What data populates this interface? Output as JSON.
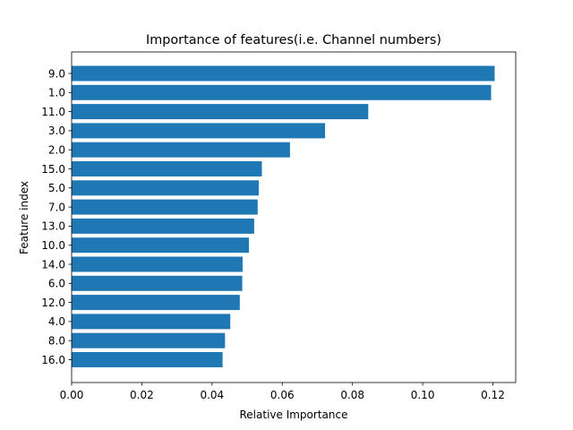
{
  "chart_data": {
    "type": "bar",
    "orientation": "horizontal",
    "title": "Importance of features(i.e. Channel numbers)",
    "xlabel": "Relative Importance",
    "ylabel": "Feature index",
    "categories": [
      "9.0",
      "1.0",
      "11.0",
      "3.0",
      "2.0",
      "15.0",
      "5.0",
      "7.0",
      "13.0",
      "10.0",
      "14.0",
      "6.0",
      "12.0",
      "4.0",
      "8.0",
      "16.0"
    ],
    "values": [
      0.1205,
      0.1195,
      0.0845,
      0.0722,
      0.0622,
      0.0542,
      0.0533,
      0.053,
      0.052,
      0.0505,
      0.0487,
      0.0486,
      0.0479,
      0.0452,
      0.0437,
      0.043
    ],
    "xlim": [
      0,
      0.1265
    ],
    "xticks": [
      0.0,
      0.02,
      0.04,
      0.06,
      0.08,
      0.1,
      0.12
    ],
    "xtick_labels": [
      "0.00",
      "0.02",
      "0.04",
      "0.06",
      "0.08",
      "0.10",
      "0.12"
    ],
    "bar_color": "#1f77b4",
    "grid": false,
    "legend": false
  }
}
